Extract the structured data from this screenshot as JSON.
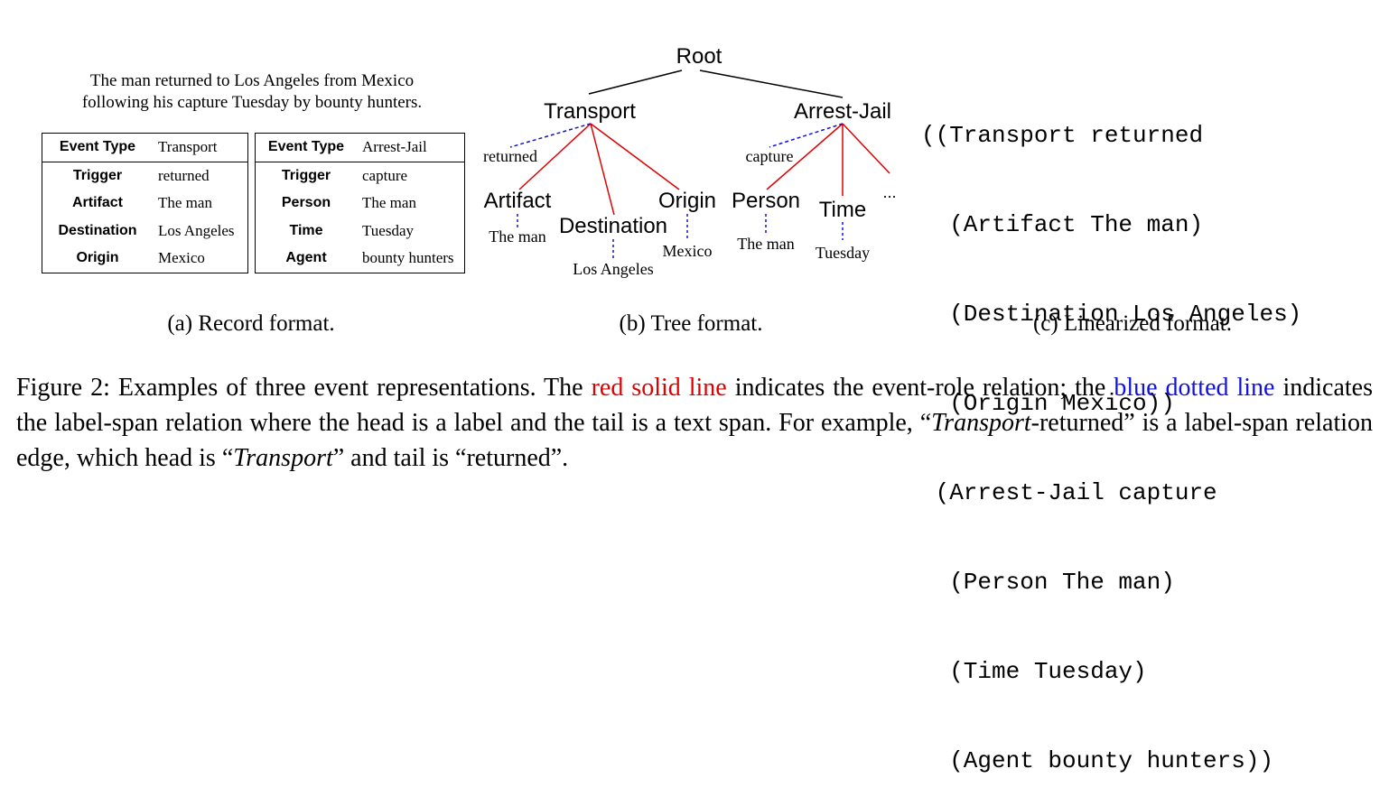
{
  "record": {
    "sentence_line1": "The man returned to Los Angeles from Mexico",
    "sentence_line2": "following his capture Tuesday by bounty hunters.",
    "table1": [
      [
        "Event Type",
        "Transport"
      ],
      [
        "Trigger",
        "returned"
      ],
      [
        "Artifact",
        "The man"
      ],
      [
        "Destination",
        "Los Angeles"
      ],
      [
        "Origin",
        "Mexico"
      ]
    ],
    "table2": [
      [
        "Event Type",
        "Arrest-Jail"
      ],
      [
        "Trigger",
        "capture"
      ],
      [
        "Person",
        "The man"
      ],
      [
        "Time",
        "Tuesday"
      ],
      [
        "Agent",
        "bounty hunters"
      ]
    ],
    "caption": "(a) Record format."
  },
  "tree": {
    "root": "Root",
    "event1": "Transport",
    "event2": "Arrest-Jail",
    "trigger1": "returned",
    "trigger2": "capture",
    "role_artifact": "Artifact",
    "role_destination": "Destination",
    "role_origin": "Origin",
    "role_person": "Person",
    "role_time": "Time",
    "ellipsis": "...",
    "span_artifact": "The man",
    "span_destination": "Los Angeles",
    "span_origin": "Mexico",
    "span_person": "The man",
    "span_time": "Tuesday",
    "caption": "(b) Tree format.",
    "colors": {
      "role_edge": "#e00000",
      "span_edge": "#1010e0"
    }
  },
  "linearized": {
    "lines": [
      "((Transport returned",
      "  (Artifact The man)",
      "  (Destination Los Angeles)",
      "  (Origin Mexico))",
      " (Arrest-Jail capture",
      "  (Person The man)",
      "  (Time Tuesday)",
      "  (Agent bounty hunters))"
    ],
    "caption": "(c) Linearized format."
  },
  "figure_caption": {
    "p1": "Figure 2: Examples of three event representations. The ",
    "red_text": "red solid line",
    "p2": " indicates the event-role relation; the ",
    "blue_text": "blue dotted line",
    "p3": " indicates the label-span relation where the head is a label and the tail is a text span. For example, “",
    "ital1": "Transport",
    "p4": "-returned” is a label-span relation edge, which head is “",
    "ital2": "Transport",
    "p5": "” and tail is “returned”."
  }
}
